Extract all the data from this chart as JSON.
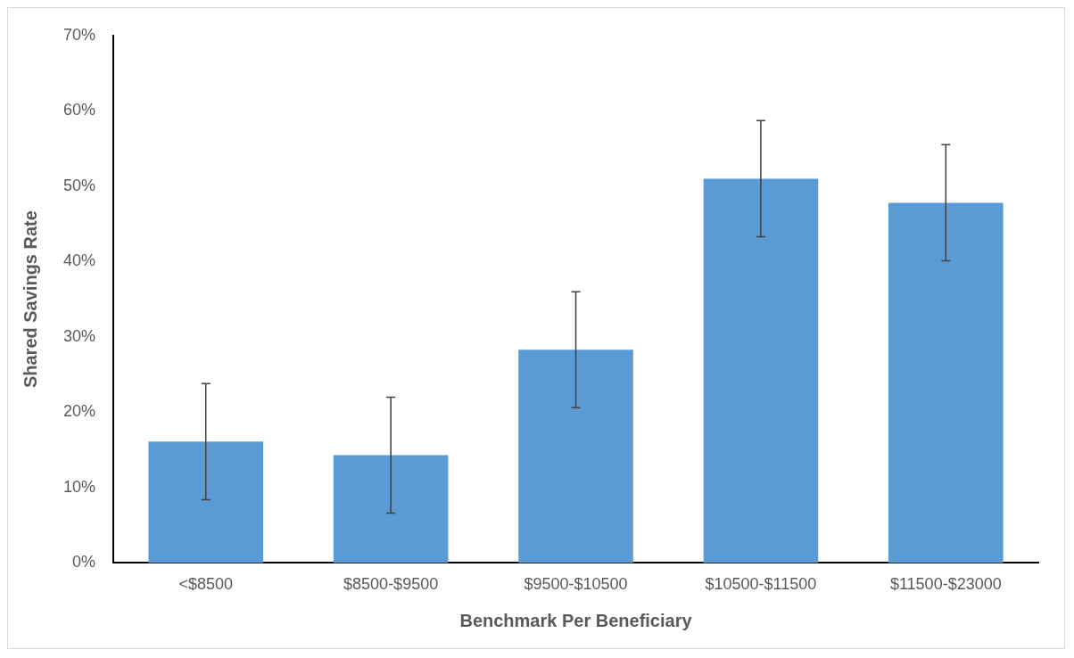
{
  "chart_data": {
    "type": "bar",
    "xlabel": "Benchmark Per Beneficiary",
    "ylabel": "Shared Savings Rate",
    "categories": [
      "<$8500",
      "$8500-$9500",
      "$9500-$10500",
      "$10500-$11500",
      "$11500-$23000"
    ],
    "values": [
      16.1,
      14.3,
      28.3,
      51.0,
      47.8
    ],
    "errors": [
      7.7,
      7.7,
      7.7,
      7.7,
      7.7
    ],
    "color": "#5b9bd5",
    "ylim": [
      0,
      70
    ],
    "yticks": [
      {
        "value": 0,
        "label": "0%"
      },
      {
        "value": 10,
        "label": "10%"
      },
      {
        "value": 20,
        "label": "20%"
      },
      {
        "value": 30,
        "label": "30%"
      },
      {
        "value": 40,
        "label": "40%"
      },
      {
        "value": 50,
        "label": "50%"
      },
      {
        "value": 60,
        "label": "60%"
      },
      {
        "value": 70,
        "label": "70%"
      }
    ],
    "grid": false,
    "legend": false
  }
}
